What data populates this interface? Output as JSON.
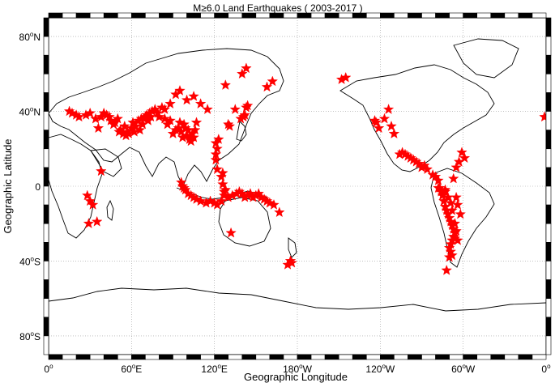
{
  "title": "M≥6.0 Land Earthquakes ( 2003-2017 )",
  "x_axis": {
    "label": "Geographic Longitude",
    "ticks": [
      {
        "lon": 0,
        "text": "0",
        "sup": "o",
        "suffix": ""
      },
      {
        "lon": 60,
        "text": "60",
        "sup": "o",
        "suffix": "E"
      },
      {
        "lon": 120,
        "text": "120",
        "sup": "o",
        "suffix": "E"
      },
      {
        "lon": 180,
        "text": "180",
        "sup": "o",
        "suffix": "W"
      },
      {
        "lon": 240,
        "text": "120",
        "sup": "o",
        "suffix": "W"
      },
      {
        "lon": 300,
        "text": "60",
        "sup": "o",
        "suffix": "W"
      },
      {
        "lon": 360,
        "text": "0",
        "sup": "o",
        "suffix": ""
      }
    ]
  },
  "y_axis": {
    "label": "Geographic Latitude",
    "ticks": [
      {
        "lat": 80,
        "text": "80",
        "sup": "o",
        "suffix": "N"
      },
      {
        "lat": 40,
        "text": "40",
        "sup": "o",
        "suffix": "N"
      },
      {
        "lat": 0,
        "text": "0",
        "sup": "",
        "suffix": ""
      },
      {
        "lat": -40,
        "text": "40",
        "sup": "o",
        "suffix": "S"
      },
      {
        "lat": -80,
        "text": "80",
        "sup": "o",
        "suffix": "S"
      }
    ]
  },
  "chart_data": {
    "type": "scatter",
    "projection": "equirectangular, centered on 180°",
    "xlim_lon": [
      0,
      360
    ],
    "ylim_lat": [
      -90,
      90
    ],
    "grid": true,
    "marker": "star",
    "marker_color": "#ff0000",
    "points": [
      [
        15,
        40
      ],
      [
        17,
        39
      ],
      [
        20,
        38
      ],
      [
        22,
        37
      ],
      [
        27,
        38
      ],
      [
        30,
        39
      ],
      [
        34,
        36
      ],
      [
        36,
        31
      ],
      [
        38,
        37
      ],
      [
        40,
        39
      ],
      [
        42,
        38
      ],
      [
        44,
        37
      ],
      [
        45,
        35
      ],
      [
        47,
        33
      ],
      [
        48,
        34
      ],
      [
        50,
        36
      ],
      [
        51,
        29
      ],
      [
        52,
        30
      ],
      [
        54,
        28
      ],
      [
        55,
        32
      ],
      [
        56,
        27
      ],
      [
        57,
        29
      ],
      [
        58,
        28
      ],
      [
        60,
        31
      ],
      [
        61,
        34
      ],
      [
        62,
        29
      ],
      [
        63,
        32
      ],
      [
        65,
        35
      ],
      [
        66,
        30
      ],
      [
        67,
        36
      ],
      [
        68,
        33
      ],
      [
        69,
        36
      ],
      [
        70,
        37
      ],
      [
        71,
        38
      ],
      [
        72,
        35
      ],
      [
        73,
        39
      ],
      [
        74,
        37
      ],
      [
        75,
        40
      ],
      [
        77,
        41
      ],
      [
        79,
        39
      ],
      [
        80,
        37
      ],
      [
        82,
        42
      ],
      [
        84,
        36
      ],
      [
        86,
        33
      ],
      [
        88,
        35
      ],
      [
        90,
        28
      ],
      [
        92,
        30
      ],
      [
        94,
        31
      ],
      [
        95,
        34
      ],
      [
        96,
        29
      ],
      [
        97,
        26
      ],
      [
        98,
        33
      ],
      [
        99,
        31
      ],
      [
        100,
        27
      ],
      [
        101,
        30
      ],
      [
        102,
        25
      ],
      [
        103,
        24
      ],
      [
        104,
        28
      ],
      [
        105,
        26
      ],
      [
        106,
        30
      ],
      [
        107,
        34
      ],
      [
        100,
        46
      ],
      [
        105,
        48
      ],
      [
        110,
        44
      ],
      [
        115,
        41
      ],
      [
        92,
        49
      ],
      [
        95,
        51
      ],
      [
        88,
        44
      ],
      [
        84,
        41
      ],
      [
        96,
        2
      ],
      [
        97,
        0
      ],
      [
        98,
        -1
      ],
      [
        99,
        -2
      ],
      [
        101,
        -4
      ],
      [
        103,
        -5
      ],
      [
        105,
        -6
      ],
      [
        107,
        -7
      ],
      [
        110,
        -8
      ],
      [
        114,
        -9
      ],
      [
        117,
        -8
      ],
      [
        120,
        -9
      ],
      [
        122,
        -10
      ],
      [
        125,
        -8
      ],
      [
        127,
        -3
      ],
      [
        128,
        -2
      ],
      [
        126,
        1
      ],
      [
        125,
        5
      ],
      [
        126,
        7
      ],
      [
        122,
        9
      ],
      [
        121,
        14
      ],
      [
        121,
        17
      ],
      [
        122,
        20
      ],
      [
        121,
        23
      ],
      [
        123,
        25
      ],
      [
        127,
        -5
      ],
      [
        130,
        -6
      ],
      [
        133,
        -5
      ],
      [
        136,
        -4
      ],
      [
        138,
        -3
      ],
      [
        140,
        -4
      ],
      [
        142,
        -6
      ],
      [
        144,
        -5
      ],
      [
        146,
        -4
      ],
      [
        148,
        -6
      ],
      [
        150,
        -5
      ],
      [
        152,
        -4
      ],
      [
        154,
        -6
      ],
      [
        156,
        -7
      ],
      [
        158,
        -8
      ],
      [
        160,
        -9
      ],
      [
        163,
        -10
      ],
      [
        167,
        -14
      ],
      [
        132,
        -25
      ],
      [
        135,
        41
      ],
      [
        139,
        36
      ],
      [
        141,
        37
      ],
      [
        142,
        38
      ],
      [
        143,
        42
      ],
      [
        144,
        43
      ],
      [
        130,
        33
      ],
      [
        131,
        32
      ],
      [
        140,
        60
      ],
      [
        158,
        53
      ],
      [
        162,
        56
      ],
      [
        128,
        54
      ],
      [
        143,
        63
      ],
      [
        173,
        -42
      ],
      [
        175,
        -40
      ],
      [
        176,
        -41
      ],
      [
        28,
        -5
      ],
      [
        30,
        -8
      ],
      [
        32,
        -10
      ],
      [
        35,
        -19
      ],
      [
        29,
        -20
      ],
      [
        38,
        8
      ],
      [
        212,
        57
      ],
      [
        215,
        58
      ],
      [
        236,
        35
      ],
      [
        237,
        34
      ],
      [
        239,
        31
      ],
      [
        243,
        36
      ],
      [
        248,
        32
      ],
      [
        250,
        28
      ],
      [
        246,
        41
      ],
      [
        254,
        17
      ],
      [
        256,
        18
      ],
      [
        258,
        17
      ],
      [
        260,
        16
      ],
      [
        262,
        15
      ],
      [
        264,
        14
      ],
      [
        266,
        13
      ],
      [
        268,
        12
      ],
      [
        270,
        10
      ],
      [
        272,
        11
      ],
      [
        274,
        9
      ],
      [
        278,
        6
      ],
      [
        280,
        5
      ],
      [
        282,
        3
      ],
      [
        283,
        -1
      ],
      [
        284,
        -3
      ],
      [
        285,
        -5
      ],
      [
        286,
        -8
      ],
      [
        287,
        -11
      ],
      [
        288,
        -13
      ],
      [
        289,
        -15
      ],
      [
        290,
        -17
      ],
      [
        291,
        -19
      ],
      [
        292,
        -21
      ],
      [
        293,
        -23
      ],
      [
        294,
        -25
      ],
      [
        293,
        -27
      ],
      [
        292,
        -29
      ],
      [
        291,
        -31
      ],
      [
        290,
        -33
      ],
      [
        291,
        -35
      ],
      [
        292,
        -37
      ],
      [
        294,
        -28
      ],
      [
        295,
        -24
      ],
      [
        294,
        -20
      ],
      [
        291,
        -9
      ],
      [
        289,
        -6
      ],
      [
        287,
        -3
      ],
      [
        288,
        -45
      ],
      [
        292,
        -13
      ],
      [
        298,
        -15
      ],
      [
        296,
        -10
      ],
      [
        295,
        -6
      ],
      [
        293,
        4
      ],
      [
        295,
        10
      ],
      [
        297,
        13
      ],
      [
        299,
        18
      ],
      [
        301,
        15
      ],
      [
        360,
        37
      ],
      [
        282,
        -1
      ],
      [
        287,
        -2
      ],
      [
        296,
        -29
      ],
      [
        290,
        -38
      ]
    ]
  }
}
